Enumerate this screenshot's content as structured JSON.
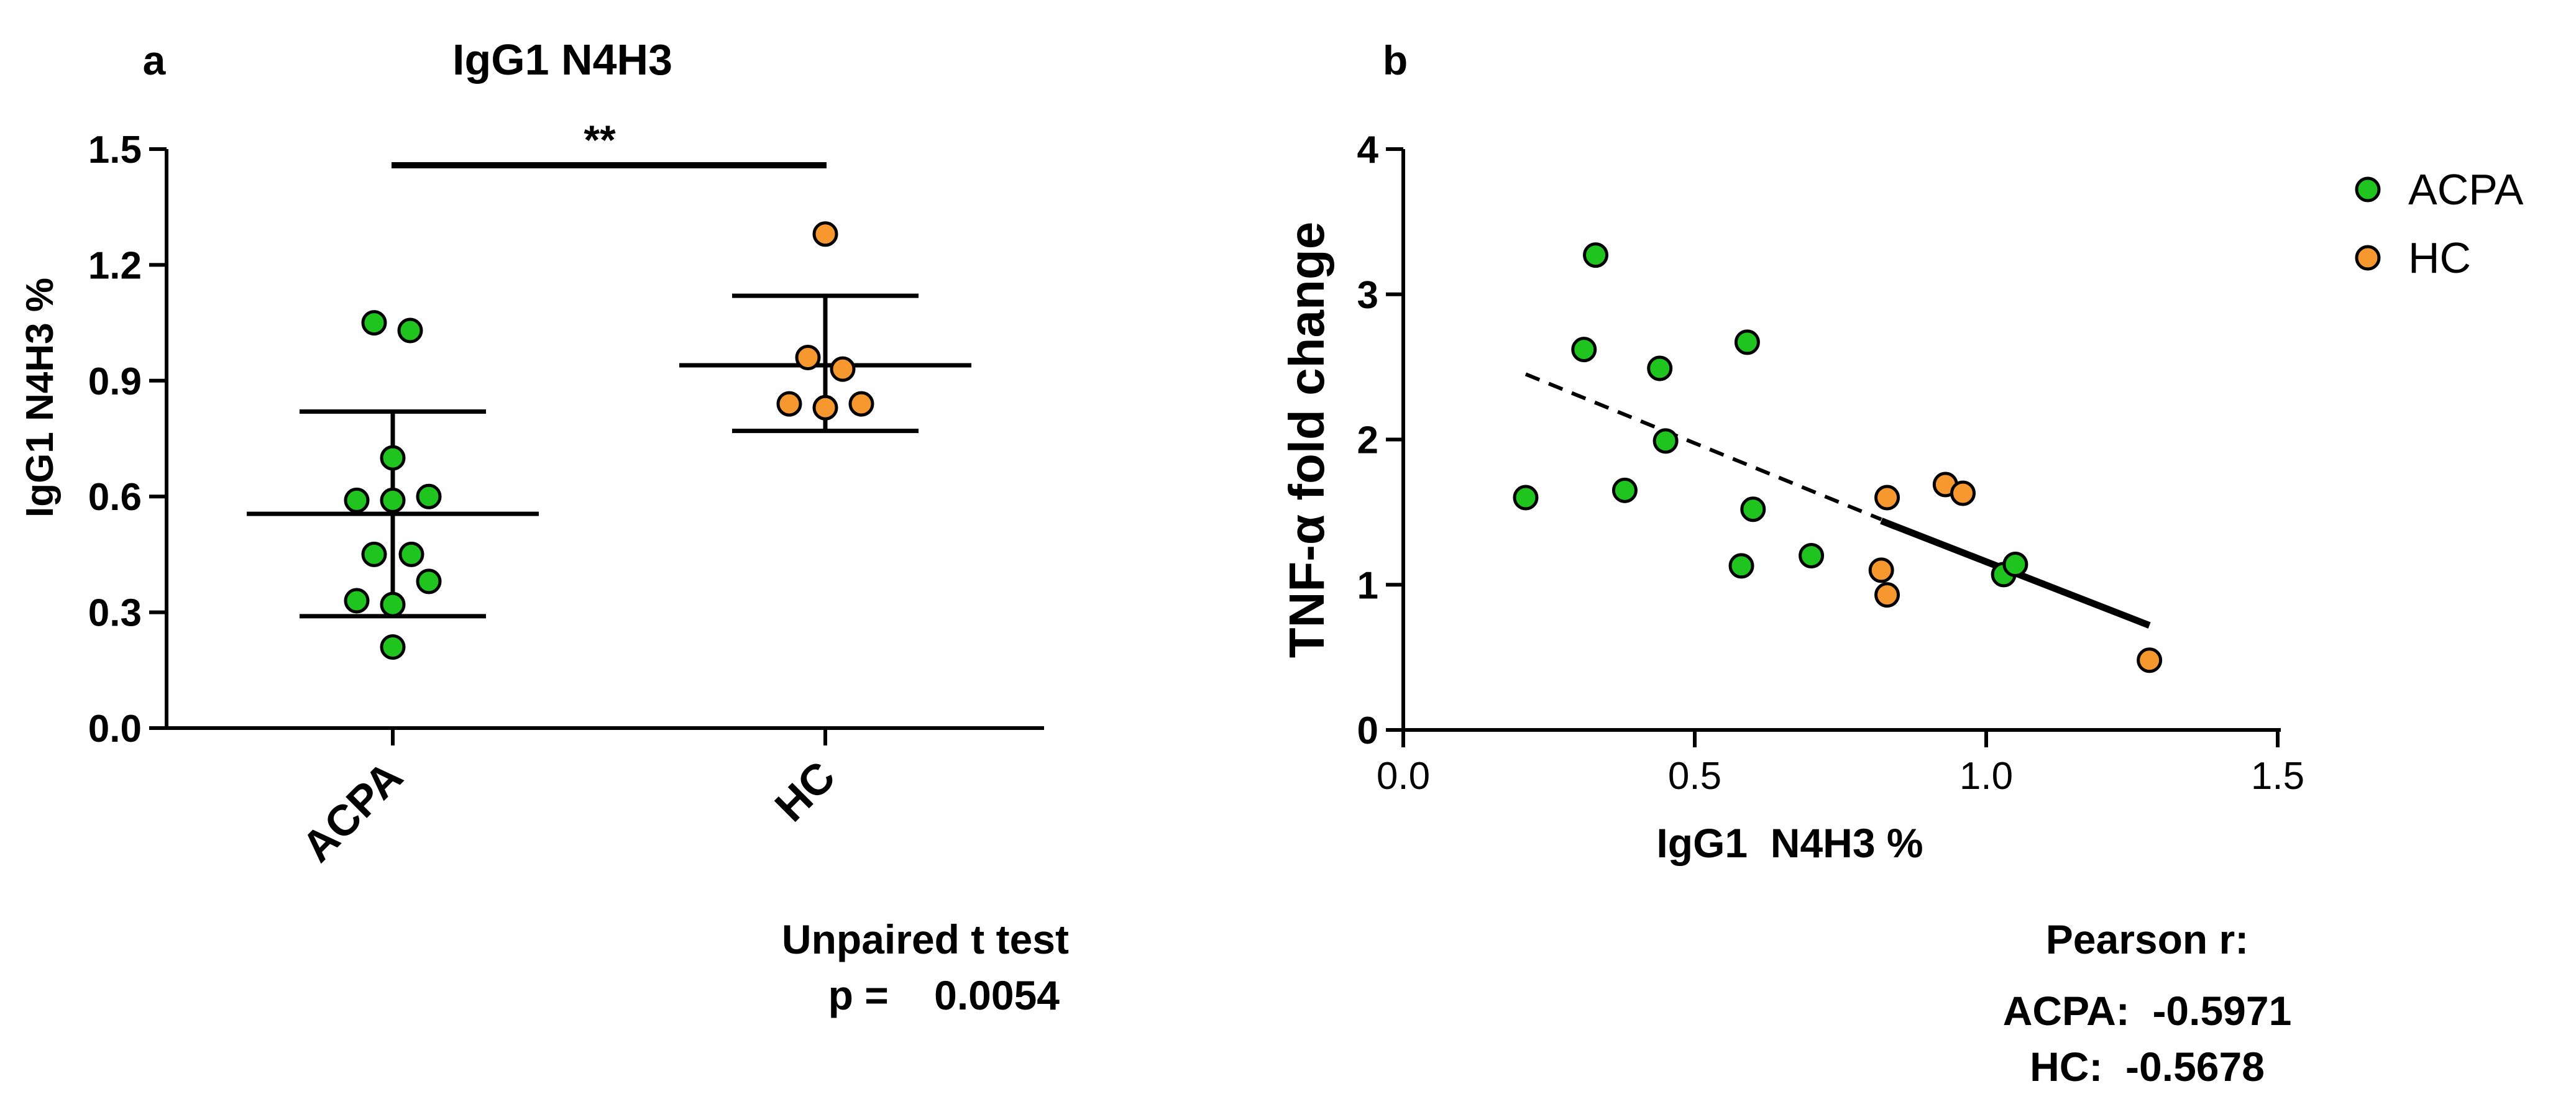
{
  "chart_data": [
    {
      "id": "a",
      "panel_label": "a",
      "type": "scatter",
      "title": "IgG1 N4H3",
      "xlabel": "",
      "ylabel": "IgG1 N4H3 %",
      "ylim": [
        0.0,
        1.5
      ],
      "yticks": [
        "0.0",
        "0.3",
        "0.6",
        "0.9",
        "1.2",
        "1.5"
      ],
      "categories": [
        "ACPA",
        "HC"
      ],
      "series": [
        {
          "name": "ACPA",
          "color": "#1fc41f",
          "values": [
            1.05,
            1.03,
            0.7,
            0.59,
            0.59,
            0.6,
            0.45,
            0.45,
            0.38,
            0.33,
            0.32,
            0.21
          ],
          "mean": 0.555,
          "sd_upper": 0.82,
          "sd_lower": 0.29
        },
        {
          "name": "HC",
          "color": "#f7982e",
          "values": [
            1.28,
            0.96,
            0.93,
            0.84,
            0.83,
            0.84
          ],
          "mean": 0.94,
          "sd_upper": 1.12,
          "sd_lower": 0.77
        }
      ],
      "significance": "**",
      "annotation": [
        "Unpaired t test",
        "p =    0.0054"
      ]
    },
    {
      "id": "b",
      "panel_label": "b",
      "type": "scatter",
      "title": "",
      "xlabel": "IgG1  N4H3 %",
      "ylabel": "TNF-α fold change",
      "xlim": [
        0.0,
        1.5
      ],
      "ylim": [
        0,
        4
      ],
      "xticks": [
        "0.0",
        "0.5",
        "1.0",
        "1.5"
      ],
      "yticks": [
        "0",
        "1",
        "2",
        "3",
        "4"
      ],
      "legend": [
        {
          "label": "ACPA",
          "color": "#1fc41f"
        },
        {
          "label": "HC",
          "color": "#f7982e"
        }
      ],
      "series": [
        {
          "name": "ACPA",
          "color": "#1fc41f",
          "points": [
            [
              0.21,
              1.6
            ],
            [
              0.31,
              2.62
            ],
            [
              0.33,
              3.27
            ],
            [
              0.38,
              1.65
            ],
            [
              0.44,
              2.49
            ],
            [
              0.45,
              1.99
            ],
            [
              0.58,
              1.13
            ],
            [
              0.59,
              2.67
            ],
            [
              0.6,
              1.52
            ],
            [
              0.7,
              1.2
            ],
            [
              1.03,
              1.07
            ],
            [
              1.05,
              1.14
            ]
          ],
          "fit": {
            "style": "dashed",
            "x": [
              0.21,
              0.82
            ],
            "y": [
              2.45,
              1.45
            ]
          }
        },
        {
          "name": "HC",
          "color": "#f7982e",
          "points": [
            [
              0.82,
              1.1
            ],
            [
              0.83,
              0.93
            ],
            [
              0.83,
              1.6
            ],
            [
              0.93,
              1.69
            ],
            [
              0.96,
              1.63
            ],
            [
              1.28,
              0.48
            ]
          ],
          "fit": {
            "style": "solid",
            "x": [
              0.82,
              1.28
            ],
            "y": [
              1.44,
              0.72
            ]
          }
        }
      ],
      "annotation": [
        "Pearson r:",
        "ACPA:  -0.5971",
        "HC:  -0.5678"
      ]
    }
  ]
}
